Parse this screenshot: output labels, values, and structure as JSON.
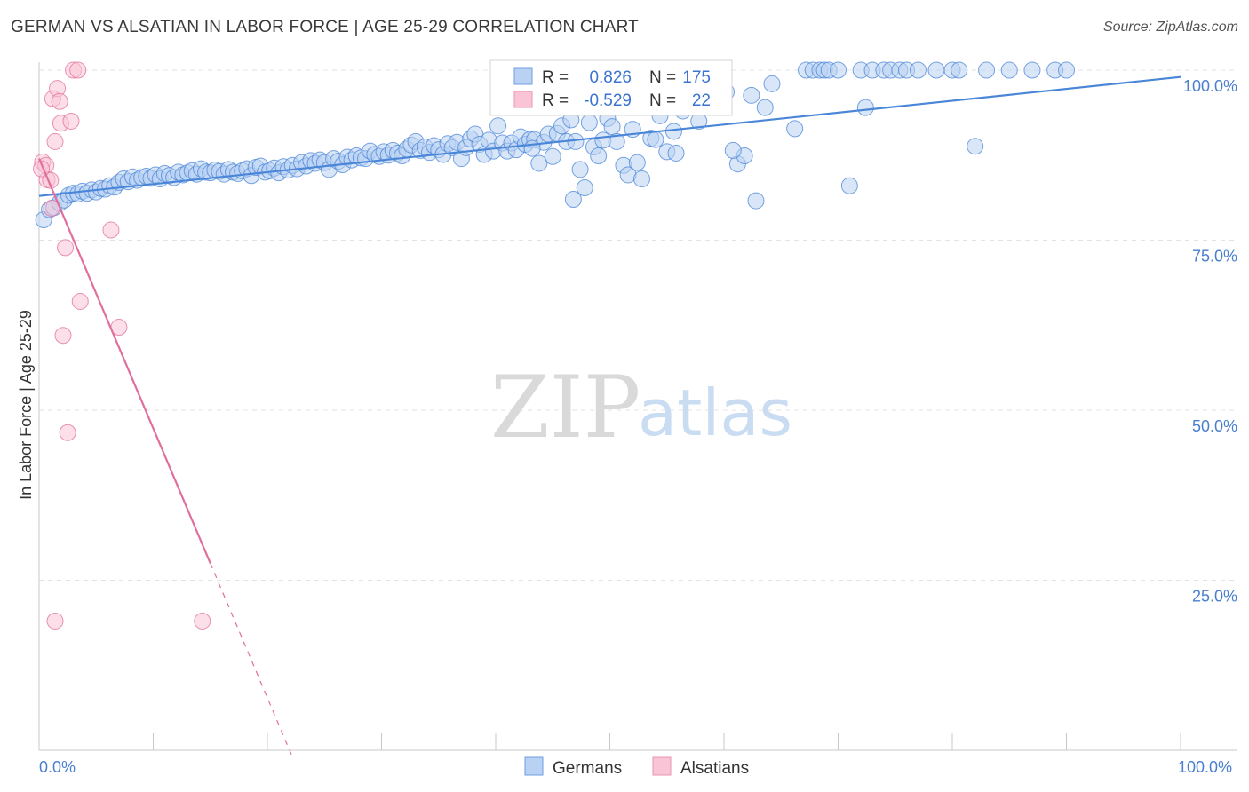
{
  "title": "GERMAN VS ALSATIAN IN LABOR FORCE | AGE 25-29 CORRELATION CHART",
  "source": "Source: ZipAtlas.com",
  "watermark": {
    "zip": "ZIP",
    "atlas": "atlas"
  },
  "colors": {
    "blue": "#4a86d8",
    "blue_fill": "#b9d1f3",
    "pink": "#e06f9d",
    "pink_fill": "#f9c4d5",
    "grid": "#e3e3e3",
    "axis_text": "#4a7fd0"
  },
  "stats_legend": {
    "rows": [
      {
        "r_label": "R =",
        "r_value": "0.826",
        "n_label": "N =",
        "n_value": "175",
        "color": "blue"
      },
      {
        "r_label": "R =",
        "r_value": "-0.529",
        "n_label": "N =",
        "n_value": "22",
        "color": "pink"
      }
    ]
  },
  "chart_data": {
    "type": "scatter",
    "xlabel": "",
    "ylabel": "In Labor Force | Age 25-29",
    "xlim": [
      0,
      100
    ],
    "ylim": [
      0,
      100
    ],
    "x_tick_labels": [
      "0.0%",
      "100.0%"
    ],
    "y_tick_labels": [
      "100.0%",
      "75.0%",
      "50.0%",
      "25.0%"
    ],
    "y_ticks": [
      100,
      75,
      50,
      25
    ],
    "grid": true,
    "legend_position": "bottom-center",
    "series": [
      {
        "name": "Germans",
        "color": "blue",
        "trend": {
          "x": [
            0,
            100
          ],
          "y": [
            81.5,
            99.0
          ]
        },
        "points": [
          [
            0.4,
            78
          ],
          [
            0.9,
            79.5
          ],
          [
            1.3,
            79.8
          ],
          [
            1.8,
            80.5
          ],
          [
            2.2,
            80.9
          ],
          [
            2.6,
            81.6
          ],
          [
            3,
            81.9
          ],
          [
            3.4,
            81.8
          ],
          [
            3.8,
            82.2
          ],
          [
            4.2,
            81.9
          ],
          [
            4.6,
            82.4
          ],
          [
            5,
            82.1
          ],
          [
            5.4,
            82.6
          ],
          [
            5.8,
            82.5
          ],
          [
            6.2,
            83
          ],
          [
            6.6,
            82.8
          ],
          [
            7,
            83.5
          ],
          [
            7.4,
            84
          ],
          [
            7.8,
            83.6
          ],
          [
            8.2,
            84.3
          ],
          [
            8.6,
            83.8
          ],
          [
            9,
            84.2
          ],
          [
            9.4,
            84.4
          ],
          [
            9.8,
            84.1
          ],
          [
            10.2,
            84.6
          ],
          [
            10.6,
            84
          ],
          [
            11,
            84.8
          ],
          [
            11.4,
            84.5
          ],
          [
            11.8,
            84.2
          ],
          [
            12.2,
            85
          ],
          [
            12.6,
            84.6
          ],
          [
            13,
            84.9
          ],
          [
            13.4,
            85.2
          ],
          [
            13.8,
            84.7
          ],
          [
            14.2,
            85.5
          ],
          [
            14.6,
            85
          ],
          [
            15,
            84.9
          ],
          [
            15.4,
            85.3
          ],
          [
            15.8,
            85.1
          ],
          [
            16.2,
            84.7
          ],
          [
            16.6,
            85.4
          ],
          [
            17,
            85
          ],
          [
            17.4,
            84.8
          ],
          [
            17.8,
            85.2
          ],
          [
            18.2,
            85.5
          ],
          [
            18.6,
            84.5
          ],
          [
            19,
            85.7
          ],
          [
            19.4,
            85.9
          ],
          [
            19.8,
            85
          ],
          [
            20.2,
            85.2
          ],
          [
            20.6,
            85.6
          ],
          [
            21,
            84.9
          ],
          [
            21.4,
            85.8
          ],
          [
            21.8,
            85.3
          ],
          [
            22.2,
            86
          ],
          [
            22.6,
            85.5
          ],
          [
            23,
            86.4
          ],
          [
            23.4,
            85.9
          ],
          [
            23.8,
            86.7
          ],
          [
            24.2,
            86.3
          ],
          [
            24.6,
            86.8
          ],
          [
            25,
            86.4
          ],
          [
            25.4,
            85.4
          ],
          [
            25.8,
            87
          ],
          [
            26.2,
            86.6
          ],
          [
            26.6,
            86.1
          ],
          [
            27,
            87.2
          ],
          [
            27.4,
            86.8
          ],
          [
            27.8,
            87.4
          ],
          [
            28.2,
            87.1
          ],
          [
            28.6,
            87
          ],
          [
            29,
            88.1
          ],
          [
            29.4,
            87.6
          ],
          [
            29.8,
            87.3
          ],
          [
            30.2,
            88
          ],
          [
            30.6,
            87.5
          ],
          [
            31,
            88.2
          ],
          [
            31.4,
            87.8
          ],
          [
            31.8,
            87.4
          ],
          [
            32.2,
            88.4
          ],
          [
            32.6,
            89
          ],
          [
            33,
            89.5
          ],
          [
            33.4,
            88.2
          ],
          [
            33.8,
            88.7
          ],
          [
            34.2,
            87.9
          ],
          [
            34.6,
            88.9
          ],
          [
            35,
            88.3
          ],
          [
            35.4,
            87.6
          ],
          [
            35.8,
            89.2
          ],
          [
            36.2,
            88.6
          ],
          [
            36.6,
            89.4
          ],
          [
            37,
            87
          ],
          [
            37.4,
            88.6
          ],
          [
            37.8,
            89.9
          ],
          [
            38.2,
            90.6
          ],
          [
            38.6,
            89.1
          ],
          [
            39,
            87.6
          ],
          [
            39.4,
            89.7
          ],
          [
            39.8,
            88.1
          ],
          [
            40.2,
            91.8
          ],
          [
            40.6,
            89.3
          ],
          [
            41,
            88.1
          ],
          [
            41.4,
            89.3
          ],
          [
            41.8,
            88.3
          ],
          [
            42.2,
            90.2
          ],
          [
            42.6,
            89.1
          ],
          [
            43,
            89.8
          ],
          [
            43.4,
            89.8
          ],
          [
            43.8,
            86.3
          ],
          [
            44.2,
            89.4
          ],
          [
            44.6,
            90.6
          ],
          [
            45,
            87.3
          ],
          [
            45.4,
            90.7
          ],
          [
            45.8,
            91.8
          ],
          [
            46.2,
            89.5
          ],
          [
            46.6,
            92.7
          ],
          [
            47,
            89.5
          ],
          [
            47.4,
            85.4
          ],
          [
            47.8,
            82.7
          ],
          [
            48.2,
            92.3
          ],
          [
            48.6,
            88.7
          ],
          [
            49,
            87.4
          ],
          [
            49.4,
            89.7
          ],
          [
            49.8,
            92.9
          ],
          [
            50.2,
            91.7
          ],
          [
            50.6,
            89.5
          ],
          [
            51.2,
            86
          ],
          [
            51.6,
            84.6
          ],
          [
            52,
            91.3
          ],
          [
            52.4,
            86.4
          ],
          [
            52.8,
            84
          ],
          [
            53.2,
            95
          ],
          [
            53.6,
            90
          ],
          [
            54,
            89.8
          ],
          [
            54.4,
            93.3
          ],
          [
            55,
            88
          ],
          [
            55.4,
            95.9
          ],
          [
            55.8,
            87.8
          ],
          [
            56.4,
            94
          ],
          [
            57.2,
            96.5
          ],
          [
            57.8,
            92.5
          ],
          [
            58.4,
            94.9
          ],
          [
            58.8,
            96.2
          ],
          [
            59.2,
            98.2
          ],
          [
            60.2,
            96.8
          ],
          [
            61.2,
            86.2
          ],
          [
            61.8,
            87.4
          ],
          [
            62.4,
            96.3
          ],
          [
            62.8,
            80.8
          ],
          [
            63.6,
            94.5
          ],
          [
            64.2,
            98
          ],
          [
            66.2,
            91.4
          ],
          [
            67.2,
            100
          ],
          [
            67.8,
            100
          ],
          [
            68.4,
            100
          ],
          [
            68.8,
            100
          ],
          [
            69.2,
            100
          ],
          [
            70,
            100
          ],
          [
            71,
            83
          ],
          [
            72,
            100
          ],
          [
            73,
            100
          ],
          [
            74,
            100
          ],
          [
            74.6,
            100
          ],
          [
            75.4,
            100
          ],
          [
            76,
            100
          ],
          [
            77,
            100
          ],
          [
            78.6,
            100
          ],
          [
            80,
            100
          ],
          [
            80.6,
            100
          ],
          [
            82,
            88.8
          ],
          [
            83,
            100
          ],
          [
            85,
            100
          ],
          [
            87,
            100
          ],
          [
            89,
            100
          ],
          [
            90,
            100
          ],
          [
            72.4,
            94.5
          ],
          [
            46.8,
            81
          ],
          [
            60.8,
            88.2
          ],
          [
            55.6,
            91
          ],
          [
            43.2,
            88.5
          ]
        ]
      },
      {
        "name": "Alsatians",
        "color": "pink",
        "trend": {
          "x": [
            0,
            15
          ],
          "y": [
            87,
            27.5
          ]
        },
        "trend_dashed": {
          "x": [
            15,
            22.2
          ],
          "y": [
            27.5,
            -1
          ]
        },
        "points": [
          [
            0.3,
            86.5
          ],
          [
            0.6,
            86
          ],
          [
            0.7,
            83.9
          ],
          [
            1,
            83.8
          ],
          [
            1.1,
            79.7
          ],
          [
            1.2,
            95.8
          ],
          [
            1.4,
            89.5
          ],
          [
            1.6,
            97.3
          ],
          [
            1.8,
            95.4
          ],
          [
            1.9,
            92.2
          ],
          [
            2.1,
            61
          ],
          [
            2.3,
            73.9
          ],
          [
            2.5,
            46.7
          ],
          [
            2.8,
            92.5
          ],
          [
            3,
            100
          ],
          [
            3.4,
            100
          ],
          [
            3.6,
            66
          ],
          [
            6.3,
            76.5
          ],
          [
            7,
            62.2
          ],
          [
            1.4,
            19
          ],
          [
            14.3,
            19
          ],
          [
            0.2,
            85.5
          ]
        ]
      }
    ]
  }
}
